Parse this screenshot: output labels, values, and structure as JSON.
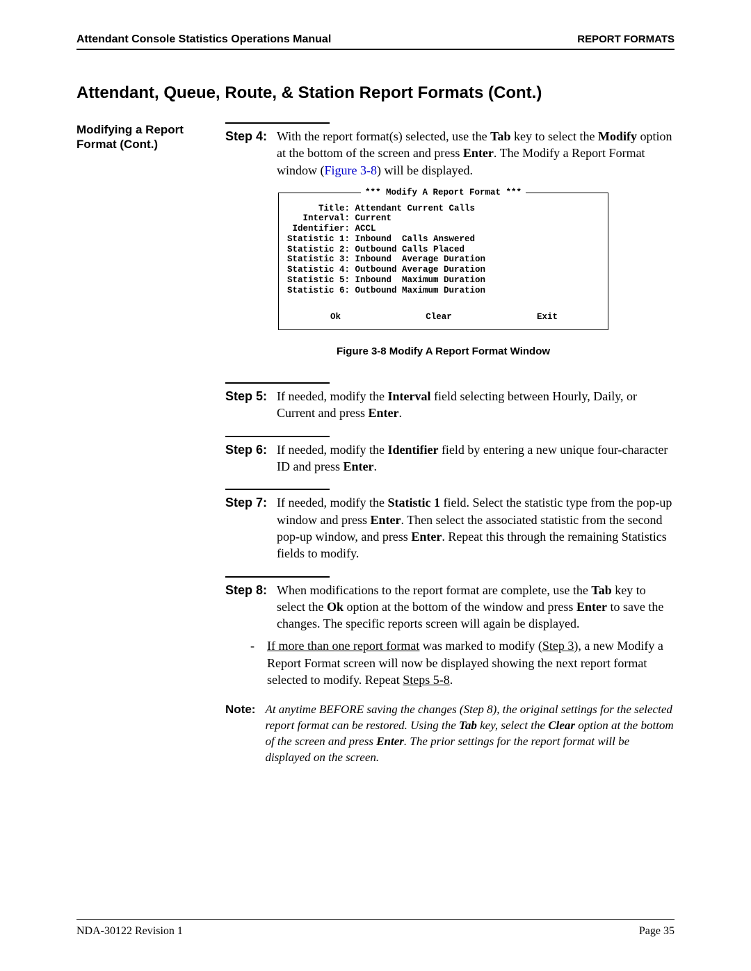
{
  "header": {
    "left": "Attendant Console Statistics Operations Manual",
    "right": "REPORT FORMATS"
  },
  "section_title": "Attendant, Queue, Route, & Station Report Formats (Cont.)",
  "side_heading": "Modifying a Report Format (Cont.)",
  "step4": {
    "label": "Step 4:",
    "pre": "With the report format(s) selected, use the ",
    "tab": "Tab",
    "mid1": " key to select the ",
    "modify": "Modify",
    "mid2": " option at the bottom of the screen and press ",
    "enter": "Enter",
    "post": ". The Modify a Report Format window (",
    "figref": "Figure 3-8",
    "tail": ") will be displayed."
  },
  "modify_window": {
    "banner": "*** Modify A Report Format ***",
    "rows": [
      "      Title: Attendant Current Calls",
      "   Interval: Current",
      " Identifier: ACCL",
      "Statistic 1: Inbound  Calls Answered",
      "Statistic 2: Outbound Calls Placed",
      "Statistic 3: Inbound  Average Duration",
      "Statistic 4: Outbound Average Duration",
      "Statistic 5: Inbound  Maximum Duration",
      "Statistic 6: Outbound Maximum Duration"
    ],
    "actions": {
      "ok": "Ok",
      "clear": "Clear",
      "exit": "Exit"
    }
  },
  "figure_caption": "Figure 3-8   Modify A Report Format Window",
  "step5": {
    "label": "Step 5:",
    "pre": "If needed, modify the ",
    "b1": "Interval",
    "mid": " field selecting between Hourly, Daily, or Current and press ",
    "enter": "Enter",
    "tail": "."
  },
  "step6": {
    "label": "Step 6:",
    "pre": "If needed, modify the ",
    "b1": "Identifier",
    "mid": " field by entering a new unique four-character ID and press ",
    "enter": "Enter",
    "tail": "."
  },
  "step7": {
    "label": "Step 7:",
    "pre": "If needed, modify the ",
    "b1": "Statistic 1",
    "mid1": " field. Select the statistic type from the pop-up window and press ",
    "enter1": "Enter",
    "mid2": ". Then select the associated statistic from the second pop-up window, and press ",
    "enter2": "Enter",
    "tail": ". Repeat this through the remaining Statistics fields to modify."
  },
  "step8": {
    "label": "Step 8:",
    "pre": "When modifications to the report format are complete, use the ",
    "tab": "Tab",
    "mid1": " key to select the ",
    "ok": "Ok",
    "mid2": " option at the bottom of the window and press ",
    "enter": "Enter",
    "tail": " to save the changes. The specific reports screen will again be displayed.",
    "dash_pre": "If more than one report format",
    "dash_mid1": " was marked to modify (",
    "dash_step3": "Step 3",
    "dash_mid2": "), a new Modify a Report Format screen will now be displayed showing the next report format selected to modify. Repeat ",
    "dash_steps58": "Steps 5-8",
    "dash_tail": "."
  },
  "note": {
    "label": "Note:",
    "pre": "At anytime BEFORE saving the changes (Step 8), the original settings for the selected report format can be restored. Using the ",
    "tab": "Tab",
    "mid1": " key, select the ",
    "clear": "Clear",
    "mid2": " option at the bottom of the screen and press ",
    "enter": "Enter",
    "tail": ". The prior settings for the report format will be displayed on the screen."
  },
  "footer": {
    "left": "NDA-30122   Revision 1",
    "right": "Page 35"
  },
  "colors": {
    "text": "#000000",
    "link": "#0000cc",
    "bg": "#ffffff"
  }
}
